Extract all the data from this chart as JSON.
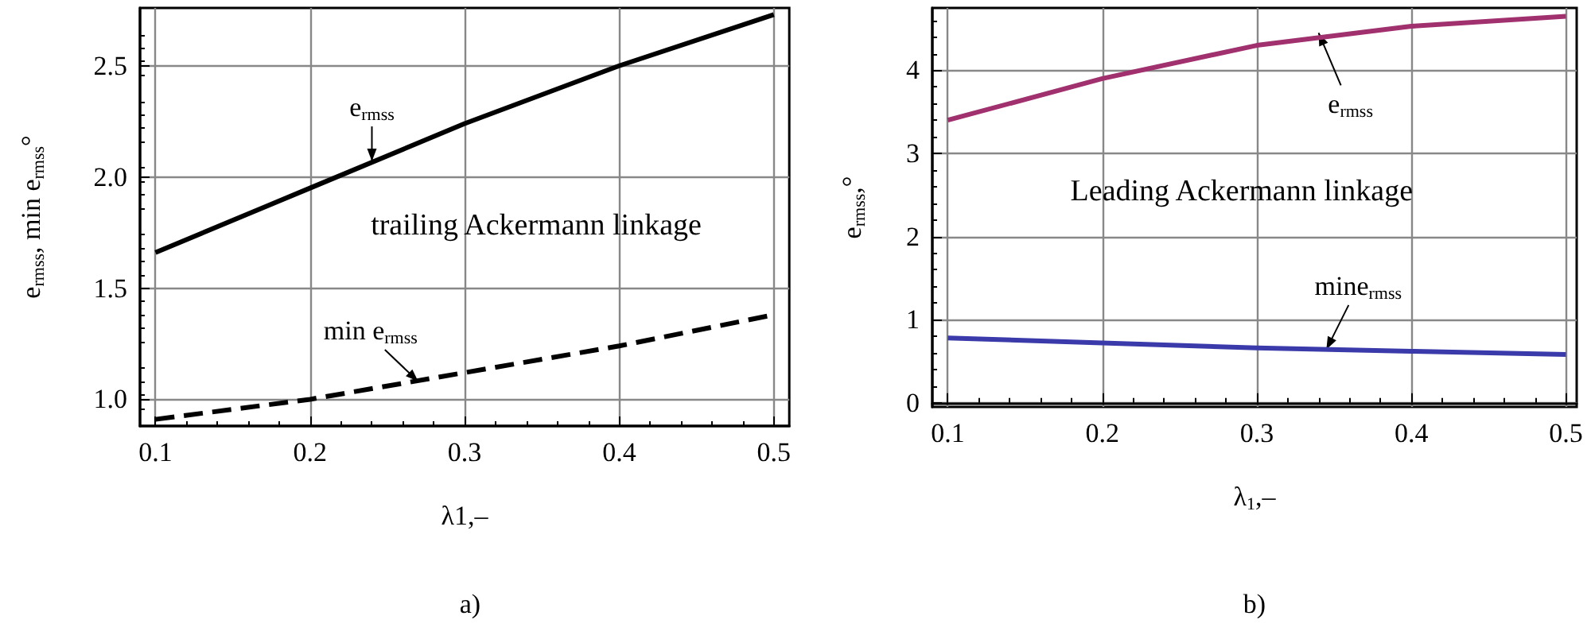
{
  "chart_data": [
    {
      "type": "line",
      "xlabel": "λ1,–",
      "ylabel": "e$_{rmss}$, min e$_{rmss}$°",
      "x": [
        0.1,
        0.2,
        0.3,
        0.4,
        0.5
      ],
      "series": [
        {
          "color": "#000000",
          "values": [
            1.66,
            1.95,
            2.24,
            2.5,
            2.73
          ],
          "line_style": "solid"
        },
        {
          "color": "#000000",
          "values": [
            0.91,
            1.0,
            1.12,
            1.24,
            1.38
          ],
          "line_style": "dashed"
        }
      ],
      "xlim": [
        0.09,
        0.51
      ],
      "xticks": [
        0.1,
        0.2,
        0.3,
        0.4,
        0.5
      ],
      "ylim": [
        0.88,
        2.76
      ],
      "yticks": [
        {
          "value": 1,
          "label": "1.0"
        },
        1.5,
        {
          "value": 2,
          "label": "2.0"
        },
        2.5
      ],
      "grid": true,
      "marker": "none",
      "annotations": [
        {
          "text": "e$_{rmss}$",
          "x": 0.24,
          "y": 2.07
        },
        {
          "text": "min e$_{rmss}$",
          "x": 0.27,
          "y": 1.08
        },
        "trailing Ackermann linkage",
        "a)"
      ]
    },
    {
      "type": "line",
      "xlabel": "λ$_{1}$,–",
      "ylabel": "e$_{rmss}$,°",
      "x": [
        0.1,
        0.2,
        0.3,
        0.4,
        0.5
      ],
      "series": [
        {
          "color": "#a0306e",
          "values": [
            3.4,
            3.9,
            4.3,
            4.53,
            4.65
          ],
          "line_style": "solid"
        },
        {
          "color": "#3a3aaa",
          "values": [
            0.78,
            0.72,
            0.66,
            0.62,
            0.58
          ],
          "line_style": "solid"
        }
      ],
      "xlim": [
        0.09,
        0.507
      ],
      "xticks": [
        0.1,
        0.2,
        0.3,
        0.4,
        0.5
      ],
      "ylim": [
        -0.05,
        4.75
      ],
      "yticks": [
        0,
        1,
        2,
        3,
        4
      ],
      "grid": true,
      "marker": "none",
      "annotations": [
        {
          "text": "e$_{rmss}$",
          "x": 0.34,
          "y": 4.45
        },
        {
          "text": "mine$_{rmss}$",
          "x": 0.345,
          "y": 0.64
        },
        "Leading Ackermann linkage",
        "b)"
      ]
    }
  ]
}
